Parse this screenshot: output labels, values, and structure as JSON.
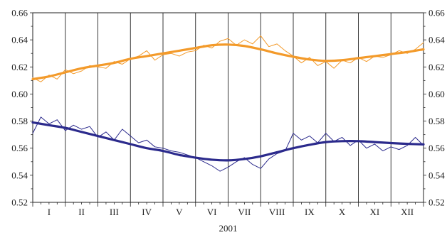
{
  "chart_data": {
    "type": "line",
    "xlabel": "2001",
    "categories": [
      "I",
      "II",
      "III",
      "IV",
      "V",
      "VI",
      "VII",
      "VIII",
      "IX",
      "X",
      "XI",
      "XII"
    ],
    "ylim": [
      0.52,
      0.66
    ],
    "yticks": [
      "0.52",
      "0.54",
      "0.56",
      "0.58",
      "0.60",
      "0.62",
      "0.64",
      "0.66"
    ],
    "grid": "vertical month dividers",
    "legend": "none",
    "x_units": "month (fractional, 0 = Jan 1, 12 = Dec 31)",
    "series": [
      {
        "color": "#f39a2a",
        "kind": "smoothed",
        "x": [
          0,
          0.5,
          1,
          1.5,
          2,
          2.5,
          3,
          3.5,
          4,
          4.5,
          5,
          5.5,
          6,
          6.5,
          7,
          7.5,
          8,
          8.5,
          9,
          9.5,
          10,
          10.5,
          11,
          11.5,
          12
        ],
        "y": [
          0.611,
          0.613,
          0.616,
          0.619,
          0.621,
          0.623,
          0.626,
          0.628,
          0.63,
          0.632,
          0.634,
          0.636,
          0.6365,
          0.6355,
          0.633,
          0.63,
          0.6275,
          0.6255,
          0.6245,
          0.625,
          0.6265,
          0.628,
          0.6295,
          0.631,
          0.633
        ]
      },
      {
        "color": "#f39a2a",
        "kind": "daily",
        "x": [
          0,
          0.25,
          0.5,
          0.75,
          1,
          1.25,
          1.5,
          1.75,
          2,
          2.25,
          2.5,
          2.75,
          3,
          3.25,
          3.5,
          3.75,
          4,
          4.25,
          4.5,
          4.75,
          5,
          5.25,
          5.5,
          5.75,
          6,
          6.25,
          6.5,
          6.75,
          7,
          7.25,
          7.5,
          7.75,
          8,
          8.25,
          8.5,
          8.75,
          9,
          9.25,
          9.5,
          9.75,
          10,
          10.25,
          10.5,
          10.75,
          11,
          11.25,
          11.5,
          11.75,
          12
        ],
        "y": [
          0.612,
          0.609,
          0.614,
          0.611,
          0.618,
          0.615,
          0.617,
          0.621,
          0.62,
          0.619,
          0.624,
          0.622,
          0.626,
          0.628,
          0.632,
          0.625,
          0.629,
          0.63,
          0.628,
          0.631,
          0.632,
          0.636,
          0.634,
          0.639,
          0.641,
          0.636,
          0.64,
          0.637,
          0.643,
          0.635,
          0.637,
          0.632,
          0.628,
          0.623,
          0.627,
          0.621,
          0.624,
          0.619,
          0.625,
          0.623,
          0.627,
          0.624,
          0.628,
          0.627,
          0.629,
          0.632,
          0.63,
          0.633,
          0.638
        ]
      },
      {
        "color": "#2b2a8c",
        "kind": "smoothed",
        "x": [
          0,
          0.5,
          1,
          1.5,
          2,
          2.5,
          3,
          3.5,
          4,
          4.5,
          5,
          5.5,
          6,
          6.5,
          7,
          7.5,
          8,
          8.5,
          9,
          9.5,
          10,
          10.5,
          11,
          11.5,
          12
        ],
        "y": [
          0.579,
          0.577,
          0.575,
          0.572,
          0.569,
          0.566,
          0.563,
          0.56,
          0.558,
          0.555,
          0.553,
          0.5515,
          0.551,
          0.552,
          0.554,
          0.557,
          0.56,
          0.5625,
          0.5645,
          0.5652,
          0.5652,
          0.5645,
          0.5638,
          0.5632,
          0.5628
        ]
      },
      {
        "color": "#2b2a8c",
        "kind": "daily",
        "x": [
          0,
          0.25,
          0.5,
          0.75,
          1,
          1.25,
          1.5,
          1.75,
          2,
          2.25,
          2.5,
          2.75,
          3,
          3.25,
          3.5,
          3.75,
          4,
          4.25,
          4.5,
          4.75,
          5,
          5.25,
          5.5,
          5.75,
          6,
          6.25,
          6.5,
          6.75,
          7,
          7.25,
          7.5,
          7.75,
          8,
          8.25,
          8.5,
          8.75,
          9,
          9.25,
          9.5,
          9.75,
          10,
          10.25,
          10.5,
          10.75,
          11,
          11.25,
          11.5,
          11.75,
          12
        ],
        "y": [
          0.571,
          0.583,
          0.578,
          0.581,
          0.573,
          0.577,
          0.574,
          0.576,
          0.568,
          0.572,
          0.566,
          0.574,
          0.569,
          0.564,
          0.566,
          0.561,
          0.56,
          0.558,
          0.557,
          0.555,
          0.553,
          0.55,
          0.547,
          0.543,
          0.546,
          0.55,
          0.553,
          0.548,
          0.545,
          0.552,
          0.556,
          0.558,
          0.571,
          0.566,
          0.569,
          0.564,
          0.571,
          0.565,
          0.568,
          0.562,
          0.566,
          0.56,
          0.563,
          0.558,
          0.561,
          0.559,
          0.562,
          0.568,
          0.562
        ]
      }
    ]
  }
}
